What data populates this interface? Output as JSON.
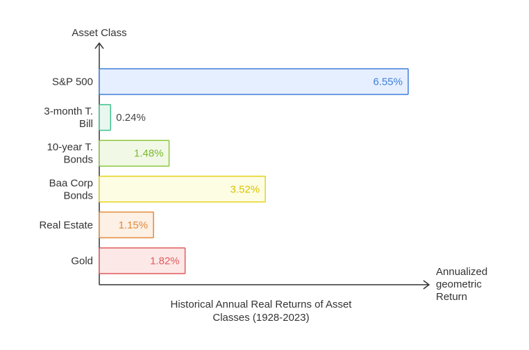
{
  "chart_data": {
    "type": "bar",
    "orientation": "horizontal",
    "title": "Historical Annual Real Returns of Asset Classes (1928-2023)",
    "xlabel": "Annualized geometric Return",
    "ylabel": "Asset Class",
    "categories": [
      "S&P 500",
      "3-month T. Bill",
      "10-year T. Bonds",
      "Baa Corp Bonds",
      "Real Estate",
      "Gold"
    ],
    "values": [
      6.55,
      0.24,
      1.48,
      3.52,
      1.15,
      1.82
    ],
    "value_labels": [
      "6.55%",
      "0.24%",
      "1.48%",
      "3.52%",
      "1.15%",
      "1.82%"
    ],
    "unit": "%",
    "grid": false,
    "legend": "none",
    "colors": [
      {
        "fill": "#e6efff",
        "stroke": "#3d7fd8",
        "text": "#3d7fd8"
      },
      {
        "fill": "#e8f8f0",
        "stroke": "#3fbf8a",
        "text": "#444444"
      },
      {
        "fill": "#f1f9e6",
        "stroke": "#8cc63f",
        "text": "#7ab82e"
      },
      {
        "fill": "#fdfde3",
        "stroke": "#e6d21e",
        "text": "#d9c200"
      },
      {
        "fill": "#fdf0e4",
        "stroke": "#e08a3a",
        "text": "#e08a3a"
      },
      {
        "fill": "#fde8e8",
        "stroke": "#e05a5a",
        "text": "#e05a5a"
      }
    ]
  }
}
